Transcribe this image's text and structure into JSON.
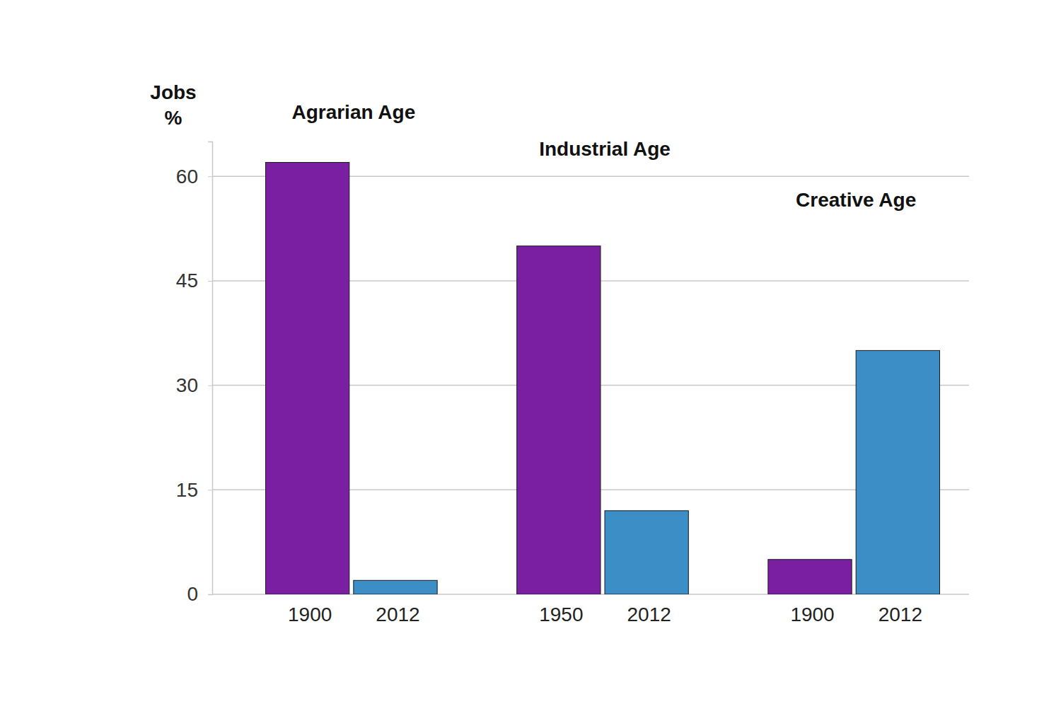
{
  "chart_data": {
    "type": "bar",
    "y_label": "Jobs\n%",
    "groups": [
      "Agrarian Age",
      "Industrial Age",
      "Creative Age"
    ],
    "categories": [
      "1900",
      "2012",
      "1950",
      "2012",
      "1900",
      "2012"
    ],
    "values": [
      62,
      2,
      50,
      12,
      5,
      35
    ],
    "colors": [
      "#7b1fa2",
      "#3b8fc6",
      "#7b1fa2",
      "#3b8fc6",
      "#7b1fa2",
      "#3b8fc6"
    ],
    "ylim": [
      0,
      65
    ],
    "yticks": [
      0,
      15,
      30,
      45,
      60
    ],
    "grid": true
  }
}
